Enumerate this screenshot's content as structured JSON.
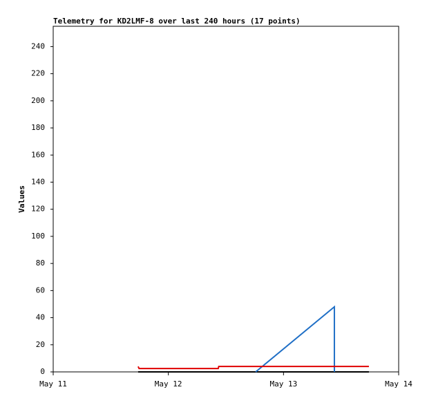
{
  "chart_data": {
    "type": "line",
    "title": "Telemetry for KD2LMF-8 over last 240 hours (17 points)",
    "y_label": "Values",
    "xlim": [
      0,
      72
    ],
    "xticks": [
      {
        "value": 0,
        "label": "May 11"
      },
      {
        "value": 24,
        "label": "May 12"
      },
      {
        "value": 48,
        "label": "May 13"
      },
      {
        "value": 72,
        "label": "May 14"
      }
    ],
    "ylim": [
      0,
      255
    ],
    "yticks": [
      0,
      20,
      40,
      60,
      80,
      100,
      120,
      140,
      160,
      180,
      200,
      220,
      240
    ],
    "series": [
      {
        "color": "#000000",
        "x": [
          17.7,
          65.8
        ],
        "values": [
          0,
          0
        ]
      },
      {
        "color": "#1f6fc6",
        "x": [
          42.2,
          58.6,
          58.6
        ],
        "values": [
          0,
          48,
          0
        ]
      },
      {
        "color": "#e00000",
        "x": [
          17.7,
          17.9,
          34.4,
          34.5,
          65.8
        ],
        "values": [
          4,
          2.5,
          2.5,
          4,
          4
        ]
      }
    ]
  }
}
